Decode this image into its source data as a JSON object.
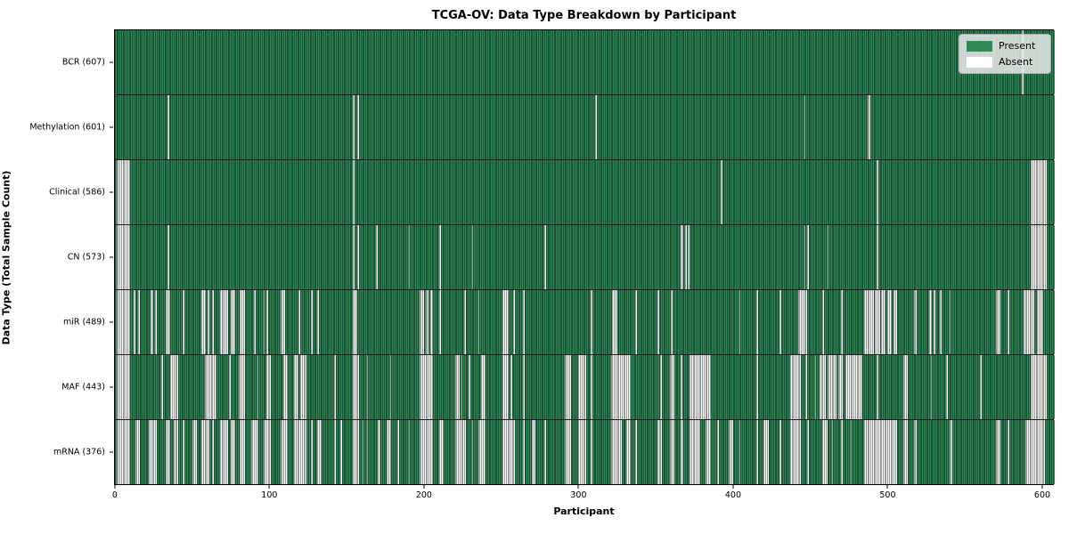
{
  "title": "TCGA-OV: Data Type Breakdown by Participant",
  "xlabel": "Participant",
  "ylabel": "Data Type (Total Sample Count)",
  "legend": {
    "present_label": "Present",
    "absent_label": "Absent",
    "position": "upper right"
  },
  "colors": {
    "present": "#2e8b57",
    "absent": "#ffffff",
    "cell_edge": "rgba(0,0,0,0.40)",
    "row_separator": "#1a1a1a",
    "plot_border": "#000000",
    "legend_bg": "rgba(234,234,234,0.85)",
    "legend_border": "#b0b0b0",
    "figure_bg": "#ffffff"
  },
  "chart_data": {
    "type": "heatmap",
    "title": "TCGA-OV: Data Type Breakdown by Participant",
    "xlabel": "Participant",
    "ylabel": "Data Type (Total Sample Count)",
    "x_ticks": [
      0,
      100,
      200,
      300,
      400,
      500,
      600
    ],
    "n_participants": 608,
    "values_encoding": {
      "present": 1,
      "absent": 0
    },
    "grid": "horizontal row separators only",
    "legend_position": "upper right",
    "rows": [
      {
        "label": "BCR (607)",
        "data_type": "BCR",
        "present_count": 607,
        "absent_count": 1,
        "absent_ranges": [
          [
            587,
            587
          ]
        ]
      },
      {
        "label": "Methylation (601)",
        "data_type": "Methylation",
        "present_count": 601,
        "absent_count": 7,
        "absent_ranges": [
          [
            34,
            34
          ],
          [
            154,
            154
          ],
          [
            157,
            157
          ],
          [
            311,
            311
          ],
          [
            446,
            446
          ],
          [
            487,
            488
          ]
        ]
      },
      {
        "label": "Clinical (586)",
        "data_type": "Clinical",
        "present_count": 586,
        "absent_count": 22,
        "absent_ranges": [
          [
            1,
            9
          ],
          [
            154,
            154
          ],
          [
            392,
            392
          ],
          [
            493,
            493
          ],
          [
            593,
            602
          ]
        ]
      },
      {
        "label": "CN (573)",
        "data_type": "CN",
        "present_count": 573,
        "absent_count": 35,
        "absent_ranges": [
          [
            1,
            9
          ],
          [
            34,
            34
          ],
          [
            154,
            154
          ],
          [
            157,
            157
          ],
          [
            169,
            169
          ],
          [
            190,
            190
          ],
          [
            210,
            210
          ],
          [
            231,
            231
          ],
          [
            278,
            278
          ],
          [
            366,
            367
          ],
          [
            369,
            369
          ],
          [
            371,
            371
          ],
          [
            446,
            446
          ],
          [
            448,
            448
          ],
          [
            461,
            461
          ],
          [
            493,
            493
          ],
          [
            593,
            602
          ]
        ]
      },
      {
        "label": "miR (489)",
        "data_type": "miR",
        "present_count": 489,
        "absent_count": 119,
        "absent_ranges": [
          [
            1,
            9
          ],
          [
            12,
            12
          ],
          [
            15,
            15
          ],
          [
            23,
            24
          ],
          [
            26,
            26
          ],
          [
            33,
            35
          ],
          [
            44,
            44
          ],
          [
            56,
            58
          ],
          [
            60,
            60
          ],
          [
            63,
            63
          ],
          [
            68,
            72
          ],
          [
            75,
            77
          ],
          [
            81,
            83
          ],
          [
            90,
            90
          ],
          [
            96,
            96
          ],
          [
            98,
            98
          ],
          [
            107,
            109
          ],
          [
            119,
            119
          ],
          [
            127,
            127
          ],
          [
            131,
            131
          ],
          [
            154,
            156
          ],
          [
            197,
            199
          ],
          [
            201,
            202
          ],
          [
            204,
            205
          ],
          [
            210,
            210
          ],
          [
            226,
            226
          ],
          [
            235,
            235
          ],
          [
            251,
            254
          ],
          [
            258,
            258
          ],
          [
            264,
            264
          ],
          [
            308,
            308
          ],
          [
            322,
            324
          ],
          [
            337,
            337
          ],
          [
            351,
            351
          ],
          [
            360,
            360
          ],
          [
            404,
            404
          ],
          [
            415,
            415
          ],
          [
            430,
            430
          ],
          [
            442,
            447
          ],
          [
            458,
            458
          ],
          [
            470,
            470
          ],
          [
            485,
            490
          ],
          [
            492,
            494
          ],
          [
            496,
            498
          ],
          [
            500,
            502
          ],
          [
            504,
            505
          ],
          [
            517,
            518
          ],
          [
            527,
            528
          ],
          [
            530,
            530
          ],
          [
            534,
            534
          ],
          [
            540,
            540
          ],
          [
            570,
            572
          ],
          [
            578,
            578
          ],
          [
            588,
            594
          ],
          [
            597,
            600
          ]
        ]
      },
      {
        "label": "MAF (443)",
        "data_type": "MAF",
        "present_count": 443,
        "absent_count": 165,
        "absent_ranges": [
          [
            1,
            9
          ],
          [
            30,
            30
          ],
          [
            36,
            40
          ],
          [
            58,
            65
          ],
          [
            74,
            74
          ],
          [
            80,
            83
          ],
          [
            92,
            92
          ],
          [
            98,
            100
          ],
          [
            109,
            111
          ],
          [
            116,
            118
          ],
          [
            120,
            123
          ],
          [
            142,
            142
          ],
          [
            154,
            157
          ],
          [
            163,
            163
          ],
          [
            178,
            178
          ],
          [
            197,
            205
          ],
          [
            220,
            222
          ],
          [
            224,
            224
          ],
          [
            229,
            229
          ],
          [
            237,
            239
          ],
          [
            251,
            254
          ],
          [
            256,
            256
          ],
          [
            264,
            264
          ],
          [
            291,
            294
          ],
          [
            300,
            304
          ],
          [
            308,
            308
          ],
          [
            321,
            333
          ],
          [
            353,
            353
          ],
          [
            359,
            361
          ],
          [
            366,
            366
          ],
          [
            372,
            385
          ],
          [
            415,
            415
          ],
          [
            437,
            443
          ],
          [
            447,
            447
          ],
          [
            453,
            453
          ],
          [
            456,
            459
          ],
          [
            461,
            466
          ],
          [
            468,
            470
          ],
          [
            473,
            483
          ],
          [
            493,
            493
          ],
          [
            510,
            512
          ],
          [
            528,
            528
          ],
          [
            538,
            538
          ],
          [
            560,
            560
          ],
          [
            593,
            602
          ]
        ]
      },
      {
        "label": "mRNA (376)",
        "data_type": "mRNA",
        "present_count": 376,
        "absent_count": 232,
        "absent_ranges": [
          [
            1,
            9
          ],
          [
            13,
            15
          ],
          [
            22,
            26
          ],
          [
            33,
            35
          ],
          [
            38,
            40
          ],
          [
            44,
            44
          ],
          [
            50,
            52
          ],
          [
            56,
            60
          ],
          [
            63,
            63
          ],
          [
            68,
            72
          ],
          [
            75,
            77
          ],
          [
            81,
            83
          ],
          [
            88,
            92
          ],
          [
            96,
            100
          ],
          [
            107,
            111
          ],
          [
            116,
            123
          ],
          [
            127,
            127
          ],
          [
            131,
            133
          ],
          [
            142,
            142
          ],
          [
            146,
            146
          ],
          [
            154,
            157
          ],
          [
            160,
            160
          ],
          [
            163,
            163
          ],
          [
            170,
            171
          ],
          [
            176,
            178
          ],
          [
            183,
            183
          ],
          [
            190,
            190
          ],
          [
            197,
            205
          ],
          [
            210,
            212
          ],
          [
            220,
            226
          ],
          [
            231,
            231
          ],
          [
            235,
            239
          ],
          [
            251,
            258
          ],
          [
            264,
            264
          ],
          [
            270,
            271
          ],
          [
            278,
            278
          ],
          [
            291,
            294
          ],
          [
            300,
            304
          ],
          [
            308,
            308
          ],
          [
            321,
            327
          ],
          [
            331,
            333
          ],
          [
            337,
            337
          ],
          [
            351,
            353
          ],
          [
            359,
            361
          ],
          [
            366,
            367
          ],
          [
            372,
            378
          ],
          [
            382,
            385
          ],
          [
            390,
            390
          ],
          [
            397,
            399
          ],
          [
            404,
            404
          ],
          [
            415,
            415
          ],
          [
            420,
            422
          ],
          [
            430,
            430
          ],
          [
            437,
            443
          ],
          [
            448,
            448
          ],
          [
            458,
            460
          ],
          [
            464,
            464
          ],
          [
            470,
            470
          ],
          [
            476,
            476
          ],
          [
            485,
            505
          ],
          [
            510,
            512
          ],
          [
            517,
            518
          ],
          [
            540,
            541
          ],
          [
            570,
            572
          ],
          [
            578,
            578
          ],
          [
            589,
            601
          ]
        ]
      }
    ]
  }
}
